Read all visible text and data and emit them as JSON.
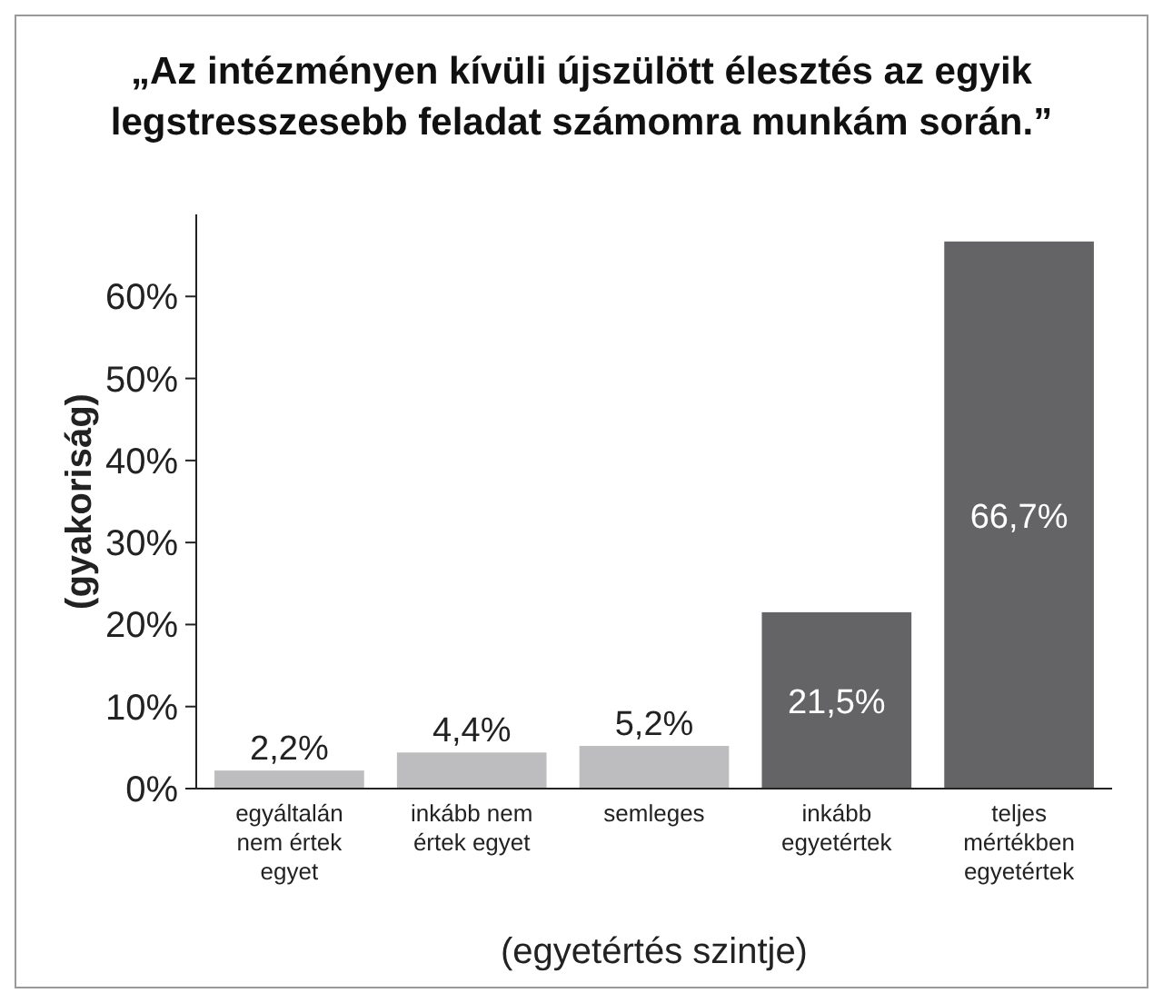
{
  "chart_data": {
    "type": "bar",
    "title": "„Az intézményen kívüli újszülött élesztés az egyik legstresszesebb feladat számomra munkám során.”",
    "xlabel": "(egyetértés szintje)",
    "ylabel": "(gyakoriság)",
    "categories": [
      "egyáltalán nem értek egyet",
      "inkább nem értek egyet",
      "semleges",
      "inkább egyetértek",
      "teljes mértékben egyetértek"
    ],
    "values": [
      2.2,
      4.4,
      5.2,
      21.5,
      66.7
    ],
    "colors": [
      "#bdbdbf",
      "#bdbdbf",
      "#bdbdbf",
      "#646466",
      "#646466"
    ],
    "value_labels": [
      "2,2%",
      "4,4%",
      "5,2%",
      "21,5%",
      "66,7%"
    ],
    "ylim": [
      0,
      70
    ],
    "yticks": [
      {
        "value": 0,
        "label": "0%"
      },
      {
        "value": 10,
        "label": "10%"
      },
      {
        "value": 20,
        "label": "20%"
      },
      {
        "value": 30,
        "label": "30%"
      },
      {
        "value": 40,
        "label": "40%"
      },
      {
        "value": 50,
        "label": "50%"
      },
      {
        "value": 60,
        "label": "60%"
      }
    ],
    "grid": false
  }
}
